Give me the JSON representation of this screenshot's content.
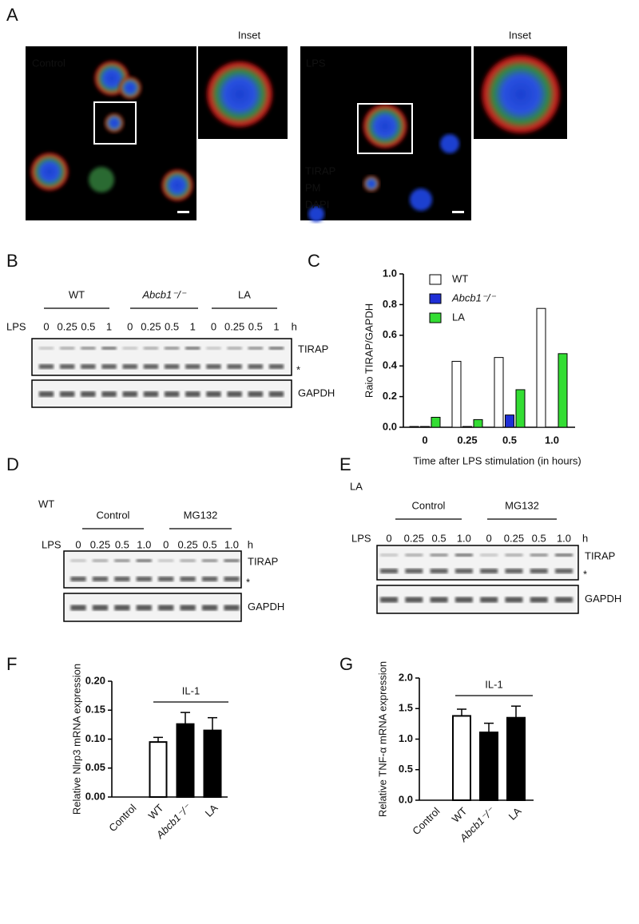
{
  "panel_letters": [
    "A",
    "B",
    "C",
    "D",
    "E",
    "F",
    "G"
  ],
  "panel_a": {
    "inset_label": "Inset",
    "images": [
      "Control",
      "LPS"
    ],
    "legend": [
      "TIRAP",
      "PM",
      "DAPI"
    ]
  },
  "panel_b": {
    "groups": [
      "WT",
      "Abcb1⁻/⁻",
      "LA"
    ],
    "row_label": "LPS",
    "lanes": [
      "0",
      "0.25",
      "0.5",
      "1",
      "0",
      "0.25",
      "0.5",
      "1",
      "0",
      "0.25",
      "0.5",
      "1"
    ],
    "unit": "h",
    "bands": [
      "TIRAP",
      "*",
      "GAPDH"
    ]
  },
  "panel_d": {
    "genotype": "WT",
    "groups": [
      "Control",
      "MG132"
    ],
    "row_label": "LPS",
    "lanes": [
      "0",
      "0.25",
      "0.5",
      "1.0",
      "0",
      "0.25",
      "0.5",
      "1.0"
    ],
    "unit": "h",
    "bands": [
      "TIRAP",
      "*",
      "GAPDH"
    ]
  },
  "panel_e": {
    "genotype": "LA",
    "groups": [
      "Control",
      "MG132"
    ],
    "row_label": "LPS",
    "lanes": [
      "0",
      "0.25",
      "0.5",
      "1.0",
      "0",
      "0.25",
      "0.5",
      "1.0"
    ],
    "unit": "h",
    "bands": [
      "TIRAP",
      "*",
      "GAPDH"
    ]
  },
  "chart_data": [
    {
      "type": "bar",
      "y_label": "Raio TIRAP/GAPDH",
      "x_label": "Time after LPS stimulation (in hours)",
      "categories": [
        "0",
        "0.25",
        "0.5",
        "1.0"
      ],
      "series": [
        {
          "name": "WT",
          "color": "#ffffff",
          "values": [
            0.005,
            0.43,
            0.455,
            0.775
          ]
        },
        {
          "name": "Abcb1⁻/⁻",
          "color": "#1f2fd6",
          "values": [
            0.005,
            0.005,
            0.08,
            0
          ]
        },
        {
          "name": "LA",
          "color": "#33dd33",
          "values": [
            0.065,
            0.05,
            0.245,
            0.48
          ]
        }
      ],
      "ylim": [
        0,
        1.0
      ],
      "yticks": [
        {
          "value": 0,
          "label": "0.0"
        },
        0.2,
        0.4,
        0.6,
        0.8,
        {
          "value": 1.0,
          "label": "1.0"
        }
      ],
      "legend": "upper left"
    },
    {
      "type": "bar",
      "y_label": "Relative Nlrp3 mRNA expression",
      "annotation": "IL-1",
      "categories": [
        "Control",
        "WT",
        "Abcb1⁻/⁻",
        "LA"
      ],
      "values": [
        null,
        0.095,
        0.126,
        0.115
      ],
      "errors": [
        null,
        0.008,
        0.02,
        0.022
      ],
      "colors": [
        "#000000",
        "#ffffff",
        "#000000",
        "#000000"
      ],
      "ylim": [
        0,
        0.2
      ],
      "yticks": [
        {
          "value": 0,
          "label": "0.00"
        },
        0.05,
        {
          "value": 0.1,
          "label": "0.10"
        },
        0.15,
        {
          "value": 0.2,
          "label": "0.20"
        }
      ]
    },
    {
      "type": "bar",
      "y_label": "Relative TNF-α mRNA expression",
      "annotation": "IL-1",
      "categories": [
        "Control",
        "WT",
        "Abcb1⁻/⁻",
        "LA"
      ],
      "values": [
        null,
        1.38,
        1.11,
        1.35
      ],
      "errors": [
        null,
        0.11,
        0.15,
        0.19
      ],
      "colors": [
        "#000000",
        "#ffffff",
        "#000000",
        "#000000"
      ],
      "ylim": [
        0,
        2.0
      ],
      "yticks": [
        {
          "value": 0,
          "label": "0.0"
        },
        0.5,
        {
          "value": 1.0,
          "label": "1.0"
        },
        1.5,
        {
          "value": 2.0,
          "label": "2.0"
        }
      ]
    }
  ]
}
